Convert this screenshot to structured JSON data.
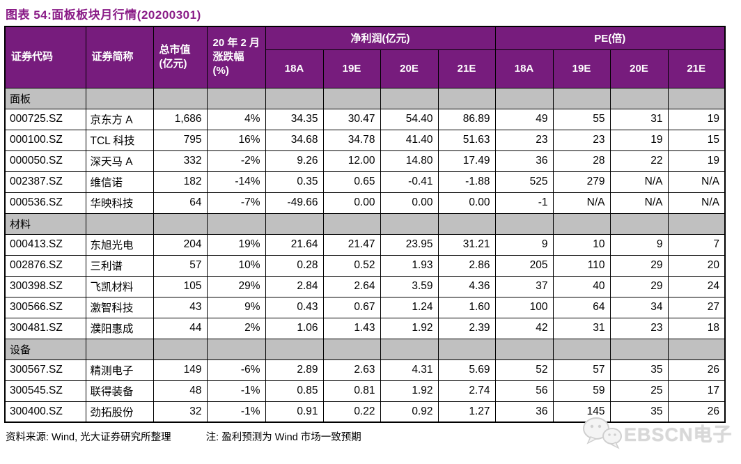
{
  "title": "图表 54:面板板块月行情(20200301)",
  "table": {
    "headers": {
      "code": "证券代码",
      "name": "证券简称",
      "mktcap": "总市值\n(亿元)",
      "change": "20 年 2 月\n涨跌幅\n(%)",
      "np_group": "净利润(亿元)",
      "pe_group": "PE(倍)",
      "np_cols": [
        "18A",
        "19E",
        "20E",
        "21E"
      ],
      "pe_cols": [
        "18A",
        "19E",
        "20E",
        "21E"
      ]
    },
    "sections": [
      {
        "label": "面板",
        "rows": [
          [
            "000725.SZ",
            "京东方 A",
            "1,686",
            "4%",
            "34.35",
            "30.47",
            "54.40",
            "86.89",
            "49",
            "55",
            "31",
            "19"
          ],
          [
            "000100.SZ",
            "TCL 科技",
            "795",
            "16%",
            "34.68",
            "34.78",
            "41.40",
            "51.63",
            "23",
            "23",
            "19",
            "15"
          ],
          [
            "000050.SZ",
            "深天马 A",
            "332",
            "-2%",
            "9.26",
            "12.00",
            "14.80",
            "17.49",
            "36",
            "28",
            "22",
            "19"
          ],
          [
            "002387.SZ",
            "维信诺",
            "182",
            "-14%",
            "0.35",
            "0.65",
            "-0.41",
            "-1.88",
            "525",
            "279",
            "N/A",
            "N/A"
          ],
          [
            "000536.SZ",
            "华映科技",
            "64",
            "-7%",
            "-49.66",
            "0.00",
            "0.00",
            "0.00",
            "-1",
            "N/A",
            "N/A",
            "N/A"
          ]
        ]
      },
      {
        "label": "材料",
        "rows": [
          [
            "000413.SZ",
            "东旭光电",
            "204",
            "19%",
            "21.64",
            "21.47",
            "23.95",
            "31.21",
            "9",
            "10",
            "9",
            "7"
          ],
          [
            "002876.SZ",
            "三利谱",
            "57",
            "10%",
            "0.28",
            "0.52",
            "1.93",
            "2.86",
            "205",
            "110",
            "29",
            "20"
          ],
          [
            "300398.SZ",
            "飞凯材料",
            "105",
            "29%",
            "2.84",
            "2.64",
            "3.59",
            "4.36",
            "37",
            "40",
            "29",
            "24"
          ],
          [
            "300566.SZ",
            "激智科技",
            "43",
            "9%",
            "0.43",
            "0.67",
            "1.24",
            "1.60",
            "100",
            "64",
            "34",
            "27"
          ],
          [
            "300481.SZ",
            "濮阳惠成",
            "44",
            "2%",
            "1.06",
            "1.43",
            "1.92",
            "2.39",
            "42",
            "31",
            "23",
            "18"
          ]
        ]
      },
      {
        "label": "设备",
        "rows": [
          [
            "300567.SZ",
            "精测电子",
            "149",
            "-6%",
            "2.89",
            "2.63",
            "4.31",
            "5.69",
            "52",
            "57",
            "35",
            "26"
          ],
          [
            "300545.SZ",
            "联得装备",
            "48",
            "-1%",
            "0.85",
            "0.81",
            "1.92",
            "2.74",
            "56",
            "59",
            "25",
            "17"
          ],
          [
            "300400.SZ",
            "劲拓股份",
            "32",
            "-1%",
            "0.91",
            "0.22",
            "0.92",
            "1.27",
            "36",
            "145",
            "35",
            "26"
          ]
        ]
      }
    ],
    "cell_names": [
      "cell-code",
      "cell-name",
      "cell-mktcap",
      "cell-change",
      "cell-np-18a",
      "cell-np-19e",
      "cell-np-20e",
      "cell-np-21e",
      "cell-pe-18a",
      "cell-pe-19e",
      "cell-pe-20e",
      "cell-pe-21e"
    ]
  },
  "footer": {
    "source": "资料来源: Wind, 光大证券研究所整理",
    "note": "注: 盈利预测为 Wind 市场一致预期"
  },
  "watermark": {
    "icon": "wechat-icon",
    "text": "EBSCN电子"
  },
  "colors": {
    "header_bg": "#771c7d",
    "title": "#8a1c87",
    "section_bg": "#c0c0c0",
    "border": "#000000",
    "watermark": "#d8d8d8"
  }
}
